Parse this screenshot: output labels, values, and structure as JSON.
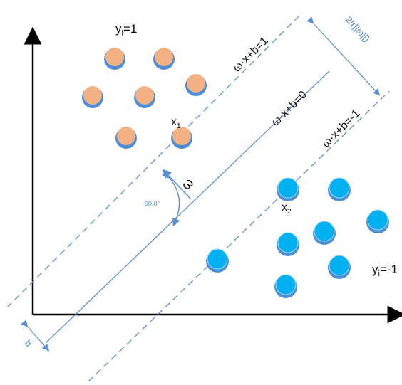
{
  "labels": {
    "class_pos": "y",
    "class_pos_sub": "i",
    "class_pos_val": "=1",
    "class_neg": "y",
    "class_neg_sub": "i",
    "class_neg_val": "=-1",
    "margin_pos": "ω·x+b=1",
    "hyperplane": "ω·x+b=0",
    "margin_neg": "ω·x+b=-1",
    "margin_width": "2/(||ω||)",
    "point_x1": "x",
    "point_x1_sub": "1",
    "point_x2": "x",
    "point_x2_sub": "2",
    "normal": "ω",
    "angle": "90.0°",
    "bias": "b"
  },
  "colors": {
    "axis": "#000000",
    "line": "#5b8fd0",
    "positive_fill": "#f4b183",
    "positive_ring": "#4d8fd6",
    "negative_fill": "#00b0f0",
    "negative_ring": "#4d8fd6"
  }
}
